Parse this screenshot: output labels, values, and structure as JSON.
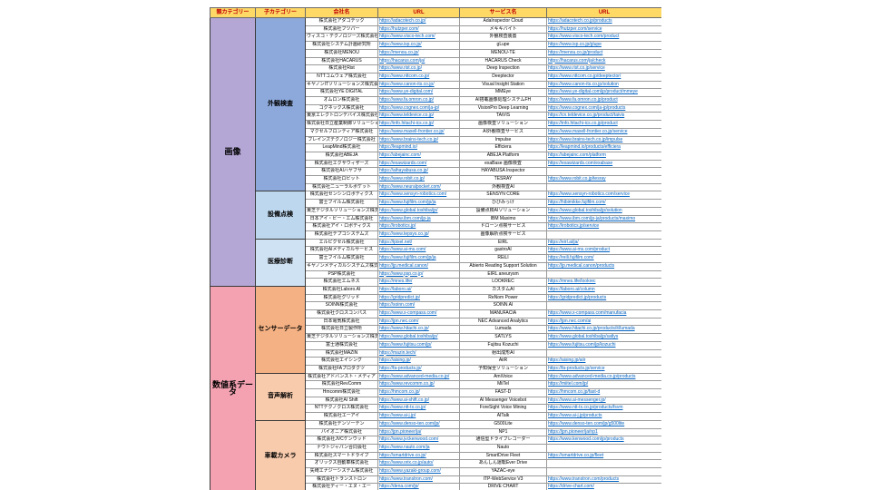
{
  "header": {
    "labels": [
      "親カテゴリー",
      "子カテゴリー",
      "会社名",
      "URL",
      "サービス名",
      "URL"
    ]
  },
  "colors": {
    "header_bg": "#FFD966",
    "header_text": "#C00000",
    "link": "#0563C1",
    "parent_image": "#B4A7D6",
    "parent_numeric": "#F4A2B2",
    "child_visual_inspection": "#8DA9DB",
    "child_facility_inspection": "#BDD7EE",
    "child_medical": "#CFE2F3",
    "child_sensor": "#F4B183",
    "child_voice": "#F8CBAD",
    "child_camera": "#F8CBAD"
  },
  "groups": [
    {
      "parent": "画像",
      "color": "#B4A7D6",
      "children": [
        {
          "name": "外観検査",
          "color": "#8DA9DB",
          "rows": [
            {
              "company": "株式会社アダコテック",
              "company_url": "https://adacotech.co.jp/",
              "service": "AdaInspector Cloud",
              "service_url": "https://adacotech.co.jp/products"
            },
            {
              "company": "株式会社フツパー",
              "company_url": "https://hutzper.com/",
              "service": "メキキバイト",
              "service_url": "https://hutzper.com/service"
            },
            {
              "company": "ヴィスコ・テクノロジーズ株式会社",
              "company_url": "https://www.visco-tech.com/",
              "service": "外観検査装置",
              "service_url": "https://www.visco-tech.com/product"
            },
            {
              "company": "株式会社システム計画研究所",
              "company_url": "https://www.isp.co.jp/",
              "service": "gLupe",
              "service_url": "https://www.isp.co.jp/glupe"
            },
            {
              "company": "株式会社MENOU",
              "company_url": "https://menou.co.jp/",
              "service": "MENOU-TE",
              "service_url": "https://menou.co.jp/product"
            },
            {
              "company": "株式会社HACARUS",
              "company_url": "https://hacarus.com/ja/",
              "service": "HACARUS Check",
              "service_url": "https://hacarus.com/ja/check"
            },
            {
              "company": "株式会社Rist",
              "company_url": "https://www.rist.co.jp/",
              "service": "Deep Inspection",
              "service_url": "https://www.rist.co.jp/service"
            },
            {
              "company": "NTTコムウェア株式会社",
              "company_url": "https://www.nttcom.co.jp/",
              "service": "Deeptector",
              "service_url": "https://www.nttcom.co.jp/deeptector/"
            },
            {
              "company": "キヤノンITソリューションズ株式会社",
              "company_url": "https://www.canon-its.co.jp/",
              "service": "Visual Insight Station",
              "service_url": "https://www.canon-its.co.jp/solution"
            },
            {
              "company": "株式会社YE DIGITAL",
              "company_url": "https://www.ye-digital.com/",
              "service": "MMEye",
              "service_url": "https://www.ye-digital.com/jp/product/mmeye"
            },
            {
              "company": "オムロン株式会社",
              "company_url": "https://www.fa.omron.co.jp/",
              "service": "AI搭載画像処理システムFH",
              "service_url": "https://www.fa.omron.co.jp/product"
            },
            {
              "company": "コグネックス株式会社",
              "company_url": "https://www.cognex.com/ja-jp/",
              "service": "VisionPro Deep Learning",
              "service_url": "https://www.cognex.com/ja-jp/products"
            },
            {
              "company": "東京エレクトロンデバイス株式会社",
              "company_url": "https://www.teldevice.co.jp/",
              "service": "TAiVIS",
              "service_url": "https://cn.teldevice.co.jp/product/taivis"
            },
            {
              "company": "株式会社日立産業制御ソリューションズ",
              "company_url": "https://info.hitachi-ics.co.jp/",
              "service": "画像検査ソリューション",
              "service_url": "https://info.hitachi-ics.co.jp/product"
            },
            {
              "company": "マクセルフロンティア株式会社",
              "company_url": "https://www.maxell-frontier.co.jp/",
              "service": "AI外観検査サービス",
              "service_url": "https://www.maxell-frontier.co.jp/service"
            },
            {
              "company": "ブレインズテクノロジー株式会社",
              "company_url": "https://www.brains-tech.co.jp/",
              "service": "Impulse",
              "service_url": "https://www.brains-tech.co.jp/impulse"
            },
            {
              "company": "LeapMind株式会社",
              "company_url": "https://leapmind.io/",
              "service": "Efficiera",
              "service_url": "https://leapmind.io/products/efficiera"
            },
            {
              "company": "株式会社ABEJA",
              "company_url": "https://abejainc.com/",
              "service": "ABEJA Platform",
              "service_url": "https://abejainc.com/platform"
            },
            {
              "company": "株式会社エクサウィザーズ",
              "company_url": "https://exawizards.com/",
              "service": "exaBase 画像検査",
              "service_url": "https://exawizards.com/exabase"
            },
            {
              "company": "株式会社AIハヤブサ",
              "company_url": "https://aihayabusa.co.jp/",
              "service": "HAYABUSA Inspector",
              "service_url": ""
            },
            {
              "company": "株式会社ロビット",
              "company_url": "https://www.robit.co.jp/",
              "service": "TESRAY",
              "service_url": "https://www.robit.co.jp/tesray"
            },
            {
              "company": "株式会社ニューラルポケット",
              "company_url": "https://www.neuralpocket.com/",
              "service": "外観検査AI",
              "service_url": ""
            }
          ]
        },
        {
          "name": "設備点検",
          "color": "#BDD7EE",
          "rows": [
            {
              "company": "株式会社センシンロボティクス",
              "company_url": "https://www.sensyn-robotics.com/",
              "service": "SENSYN CORE",
              "service_url": "https://www.sensyn-robotics.com/service"
            },
            {
              "company": "富士フイルム株式会社",
              "company_url": "https://www.fujifilm.com/jp/ja",
              "service": "ひびみっけ",
              "service_url": "https://hibimikke.fujifilm.com/"
            },
            {
              "company": "東芝デジタルソリューションズ株式会社",
              "company_url": "https://www.global.toshiba/jp/",
              "service": "設備点検AIソリューション",
              "service_url": "https://www.global.toshiba/jp/solution"
            },
            {
              "company": "日本アイ・ビー・エム株式会社",
              "company_url": "https://www.ibm.com/jp-ja",
              "service": "IBM Maximo",
              "service_url": "https://www.ibm.com/jp-ja/products/maximo"
            },
            {
              "company": "株式会社アイ・ロボティクス",
              "company_url": "https://irobotics.jp/",
              "service": "ドローン点検サービス",
              "service_url": "https://irobotics.jp/service"
            },
            {
              "company": "株式会社テプコシステムズ",
              "company_url": "https://www.tepsys.co.jp/",
              "service": "画像解析点検サービス",
              "service_url": ""
            }
          ]
        },
        {
          "name": "医療診断",
          "color": "#CFE2F3",
          "rows": [
            {
              "company": "エルピクセル株式会社",
              "company_url": "https://lpixel.net/",
              "service": "EIRL",
              "service_url": "https://eirl.ai/ja/"
            },
            {
              "company": "株式会社AIメディカルサービス",
              "company_url": "https://www.ai-ms.com/",
              "service": "gastroAI",
              "service_url": "https://www.ai-ms.com/product"
            },
            {
              "company": "富士フイルム株式会社",
              "company_url": "https://www.fujifilm.com/jp/ja",
              "service": "REiLI",
              "service_url": "https://reili.fujifilm.com/"
            },
            {
              "company": "キヤノンメディカルシステムズ株式会社",
              "company_url": "https://jp.medical.canon/",
              "service": "Abierto Reading Support Solution",
              "service_url": "https://jp.medical.canon/products"
            },
            {
              "company": "PSP株式会社",
              "company_url": "https://www.psp.co.jp/",
              "service": "EIRL aneurysm",
              "service_url": ""
            },
            {
              "company": "株式会社エムネス",
              "company_url": "https://mnes.life/",
              "service": "LOOKREC",
              "service_url": "https://mnes.life/lookrec"
            }
          ]
        }
      ]
    },
    {
      "parent": "数値系データ",
      "color": "#F4A2B2",
      "children": [
        {
          "name": "センサーデータ",
          "color": "#F4B183",
          "rows": [
            {
              "company": "株式会社Laboro.AI",
              "company_url": "https://laboro.ai/",
              "service": "カスタムAI",
              "service_url": "https://laboro.ai/column"
            },
            {
              "company": "株式会社グリッド",
              "company_url": "https://gridpredict.jp/",
              "service": "ReNom Power",
              "service_url": "https://gridpredict.jp/products"
            },
            {
              "company": "SOINN株式会社",
              "company_url": "https://soinn.com/",
              "service": "SOINN AI",
              "service_url": ""
            },
            {
              "company": "株式会社クロスコンパス",
              "company_url": "https://www.x-compass.com/",
              "service": "MANUFACIA",
              "service_url": "https://www.x-compass.com/manufacia"
            },
            {
              "company": "日本電気株式会社",
              "company_url": "https://jpn.nec.com/",
              "service": "NEC Advanced Analytics",
              "service_url": "https://jpn.nec.com/ai"
            },
            {
              "company": "株式会社日立製作所",
              "company_url": "https://www.hitachi.co.jp/",
              "service": "Lumada",
              "service_url": "https://www.hitachi.co.jp/products/it/lumada"
            },
            {
              "company": "東芝デジタルソリューションズ株式会社",
              "company_url": "https://www.global.toshiba/jp/",
              "service": "SATLYS",
              "service_url": "https://www.global.toshiba/jp/satlys"
            },
            {
              "company": "富士通株式会社",
              "company_url": "https://www.fujitsu.com/jp/",
              "service": "Fujitsu Kozuchi",
              "service_url": "https://www.fujitsu.com/jp/kozuchi"
            },
            {
              "company": "株式会社MAZIN",
              "company_url": "https://mazin.tech/",
              "service": "射出成形AI",
              "service_url": ""
            },
            {
              "company": "株式会社エイシング",
              "company_url": "https://aising.jp/",
              "service": "AiiR",
              "service_url": "https://aising.jp/aiir"
            },
            {
              "company": "株式会社FAプロダクツ",
              "company_url": "https://fa-products.jp/",
              "service": "予知保全ソリューション",
              "service_url": "https://fa-products.jp/service"
            }
          ]
        },
        {
          "name": "音声解析",
          "color": "#F8CBAD",
          "rows": [
            {
              "company": "株式会社アドバンスト・メディア",
              "company_url": "https://www.advanced-media.co.jp/",
              "service": "AmiVoice",
              "service_url": "https://www.advanced-media.co.jp/products"
            },
            {
              "company": "株式会社RevComm",
              "company_url": "https://www.revcomm.co.jp/",
              "service": "MiiTel",
              "service_url": "https://miitel.com/jp/"
            },
            {
              "company": "Hmcomm株式会社",
              "company_url": "https://hmcom.co.jp/",
              "service": "FAST-D",
              "service_url": "https://hmcom.co.jp/fast-d"
            },
            {
              "company": "株式会社AI Shift",
              "company_url": "https://www.ai-shift.co.jp/",
              "service": "AI Messenger Voicebot",
              "service_url": "https://www.ai-messenger.jp/"
            },
            {
              "company": "NTTテクノクロス株式会社",
              "company_url": "https://www.ntt-tx.co.jp/",
              "service": "ForeSight Voice Mining",
              "service_url": "https://www.ntt-tx.co.jp/products/fsvm"
            },
            {
              "company": "株式会社エーアイ",
              "company_url": "https://www.ai-j.jp/",
              "service": "AITalk",
              "service_url": "https://www.ai-j.jp/products"
            }
          ]
        },
        {
          "name": "車載カメラ",
          "color": "#F8CBAD",
          "rows": [
            {
              "company": "株式会社デンソーテン",
              "company_url": "https://www.denso-ten.com/jp/",
              "service": "G500Lite",
              "service_url": "https://www.denso-ten.com/jp/g500lite"
            },
            {
              "company": "パイオニア株式会社",
              "company_url": "https://jpn.pioneer/ja/",
              "service": "NP1",
              "service_url": "https://jpn.pioneer/ja/np1"
            },
            {
              "company": "株式会社JVCケンウッド",
              "company_url": "https://www.jvckenwood.com/",
              "service": "通信型ドライブレコーダー",
              "service_url": "https://www.kenwood.com/jp/products"
            },
            {
              "company": "ナウトジャパン合同会社",
              "company_url": "https://www.nauto.com/ja",
              "service": "Nauto",
              "service_url": ""
            },
            {
              "company": "株式会社スマートドライブ",
              "company_url": "https://smartdrive.co.jp/",
              "service": "SmartDrive Fleet",
              "service_url": "https://smartdrive.co.jp/fleet"
            },
            {
              "company": "オリックス自動車株式会社",
              "company_url": "https://www.orix.co.jp/auto/",
              "service": "あんしん運転Ever Drive",
              "service_url": ""
            },
            {
              "company": "矢崎エナジーシステム株式会社",
              "company_url": "https://www.yazaki-group.com/",
              "service": "YAZAC-eye",
              "service_url": ""
            },
            {
              "company": "株式会社トランストロン",
              "company_url": "https://www.transtron.com/",
              "service": "ITP-WebService V3",
              "service_url": "https://www.transtron.com/products"
            },
            {
              "company": "株式会社ディー・エヌ・エー",
              "company_url": "https://dena.com/jp/",
              "service": "DRIVE CHART",
              "service_url": "https://drive-chart.com/"
            }
          ]
        }
      ]
    }
  ]
}
